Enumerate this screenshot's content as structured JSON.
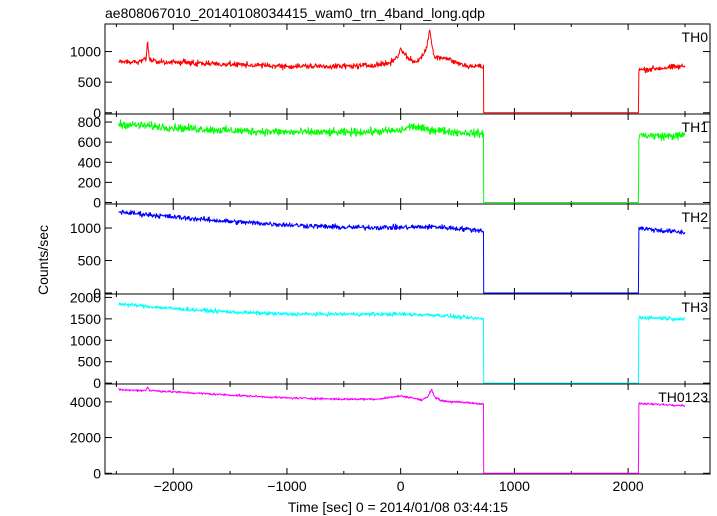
{
  "chart_data": {
    "type": "line",
    "title": "ae808067010_20140108034415_wam0_trn_4band_long.qdp",
    "xlabel": "Time [sec] 0 = 2014/01/08 03:44:15",
    "ylabel": "Counts/sec",
    "xlim": [
      -2600,
      2720
    ],
    "x_ticks": [
      -2000,
      -1000,
      0,
      1000,
      2000
    ],
    "x_tick_labels": [
      "−2000",
      "−1000",
      "0",
      "1000",
      "2000"
    ],
    "gap": [
      730,
      2090
    ],
    "panels": [
      {
        "name": "TH0",
        "color": "#ff0000",
        "ylim": [
          -20,
          1450
        ],
        "yticks": [
          0,
          500,
          1000
        ],
        "ytick_labels": [
          "0",
          "500",
          "1000"
        ],
        "noise": 35,
        "x": [
          -2480,
          -2300,
          -2240,
          -2225,
          -2210,
          -2150,
          -2000,
          -1500,
          -1000,
          -500,
          -300,
          -100,
          -20,
          0,
          30,
          60,
          120,
          180,
          220,
          240,
          255,
          270,
          285,
          300,
          340,
          420,
          500,
          600,
          700,
          730,
          2090,
          2095,
          2300,
          2500
        ],
        "y": [
          830,
          830,
          880,
          1170,
          880,
          830,
          830,
          790,
          760,
          760,
          770,
          810,
          930,
          1070,
          960,
          910,
          820,
          900,
          1020,
          1180,
          1370,
          1160,
          1010,
          920,
          910,
          880,
          810,
          760,
          760,
          740,
          680,
          700,
          730,
          760
        ]
      },
      {
        "name": "TH1",
        "color": "#00ff00",
        "ylim": [
          -15,
          880
        ],
        "yticks": [
          0,
          200,
          400,
          600,
          800
        ],
        "ytick_labels": [
          "0",
          "200",
          "400",
          "600",
          "800"
        ],
        "noise": 30,
        "x": [
          -2480,
          -2000,
          -1500,
          -1000,
          -500,
          0,
          100,
          200,
          300,
          500,
          700,
          730,
          2090,
          2095,
          2300,
          2500
        ],
        "y": [
          780,
          745,
          715,
          700,
          695,
          715,
          760,
          730,
          720,
          700,
          685,
          680,
          660,
          670,
          660,
          665
        ]
      },
      {
        "name": "TH2",
        "color": "#0000ff",
        "ylim": [
          -15,
          1370
        ],
        "yticks": [
          0,
          500,
          1000
        ],
        "ytick_labels": [
          "0",
          "500",
          "1000"
        ],
        "noise": 30,
        "x": [
          -2480,
          -2000,
          -1500,
          -1000,
          -500,
          0,
          300,
          600,
          730,
          2090,
          2095,
          2300,
          2500
        ],
        "y": [
          1250,
          1170,
          1100,
          1050,
          1010,
          1010,
          1020,
          980,
          960,
          950,
          1000,
          960,
          930
        ]
      },
      {
        "name": "TH3",
        "color": "#00ffff",
        "ylim": [
          -20,
          2080
        ],
        "yticks": [
          0,
          500,
          1000,
          1500,
          2000
        ],
        "ytick_labels": [
          "0",
          "500",
          "1000",
          "1500",
          "2000"
        ],
        "noise": 35,
        "x": [
          -2480,
          -2000,
          -1500,
          -1000,
          -500,
          0,
          300,
          600,
          730,
          2090,
          2095,
          2300,
          2500
        ],
        "y": [
          1850,
          1740,
          1660,
          1610,
          1610,
          1610,
          1590,
          1520,
          1500,
          1480,
          1530,
          1520,
          1490
        ]
      },
      {
        "name": "TH0123",
        "color": "#ff00ff",
        "ylim": [
          -40,
          5000
        ],
        "yticks": [
          0,
          2000,
          4000
        ],
        "ytick_labels": [
          "0",
          "2000",
          "4000"
        ],
        "noise": 45,
        "x": [
          -2480,
          -2300,
          -2240,
          -2225,
          -2210,
          -2000,
          -1500,
          -1000,
          -500,
          -200,
          0,
          100,
          180,
          240,
          270,
          300,
          350,
          450,
          600,
          730,
          2090,
          2095,
          2300,
          2500
        ],
        "y": [
          4680,
          4640,
          4650,
          4850,
          4640,
          4560,
          4380,
          4220,
          4150,
          4160,
          4330,
          4230,
          4100,
          4280,
          4720,
          4280,
          4080,
          4000,
          3950,
          3880,
          3840,
          3900,
          3850,
          3800
        ]
      }
    ]
  }
}
